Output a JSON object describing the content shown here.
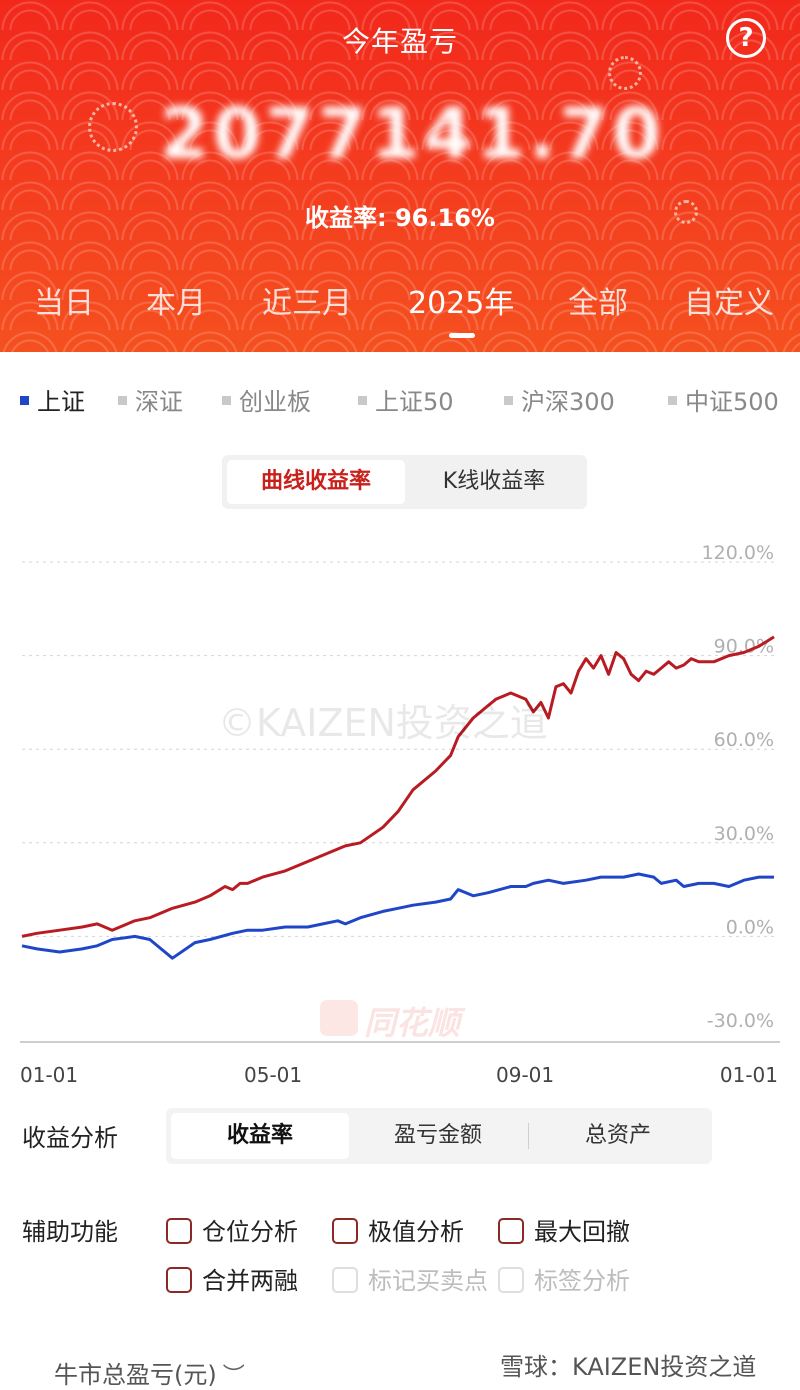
{
  "header": {
    "title": "今年盈亏",
    "amount": "2077141.70",
    "rate_label": "收益率: 96.16%"
  },
  "period_tabs": [
    "当日",
    "本月",
    "近三月",
    "2025年",
    "全部",
    "自定义"
  ],
  "active_period": "2025年",
  "index_options": [
    "上证",
    "深证",
    "创业板",
    "上证50",
    "沪深300",
    "中证500"
  ],
  "active_index": "上证",
  "chart_mode": {
    "active": "曲线收益率",
    "other": "K线收益率"
  },
  "watermark": "©KAIZEN投资之道",
  "brand_logo": "同花顺",
  "colors": {
    "header_red": "#f2281b",
    "portfolio_line": "#b81c22",
    "index_line": "#2046c8"
  },
  "chart_data": {
    "type": "line",
    "x_labels": [
      "01-01",
      "05-01",
      "09-01",
      "01-01"
    ],
    "y_ticks": [
      "120.0%",
      "90.0%",
      "60.0%",
      "30.0%",
      "0.0%",
      "-30.0%"
    ],
    "ylim": [
      -30,
      120
    ],
    "grid": true,
    "series": [
      {
        "color": "#b81c22",
        "x": [
          0,
          2,
          5,
          8,
          10,
          12,
          15,
          17,
          20,
          23,
          25,
          27,
          28,
          29,
          30,
          32,
          35,
          38,
          40,
          42,
          43,
          45,
          48,
          50,
          52,
          55,
          57,
          58,
          60,
          62,
          63,
          65,
          67,
          68,
          69,
          70,
          71,
          72,
          73,
          74,
          75,
          76,
          77,
          78,
          79,
          80,
          81,
          82,
          83,
          84,
          85,
          86,
          87,
          88,
          89,
          90,
          92,
          94,
          96,
          98,
          100
        ],
        "y": [
          0,
          1,
          2,
          3,
          4,
          2,
          5,
          6,
          9,
          11,
          13,
          16,
          15,
          17,
          17,
          19,
          21,
          24,
          26,
          28,
          29,
          30,
          35,
          40,
          47,
          53,
          58,
          64,
          70,
          74,
          76,
          78,
          76,
          72,
          75,
          70,
          80,
          81,
          78,
          85,
          89,
          86,
          90,
          84,
          91,
          89,
          84,
          82,
          85,
          84,
          86,
          88,
          86,
          87,
          89,
          88,
          88,
          90,
          91,
          93,
          96
        ]
      },
      {
        "color": "#2046c8",
        "x": [
          0,
          2,
          5,
          8,
          10,
          12,
          15,
          17,
          20,
          23,
          25,
          28,
          30,
          32,
          35,
          38,
          40,
          42,
          43,
          45,
          48,
          50,
          52,
          55,
          57,
          58,
          60,
          62,
          65,
          67,
          68,
          70,
          72,
          75,
          77,
          80,
          82,
          84,
          85,
          87,
          88,
          90,
          92,
          94,
          96,
          98,
          100
        ],
        "y": [
          -3,
          -4,
          -5,
          -4,
          -3,
          -1,
          0,
          -1,
          -7,
          -2,
          -1,
          1,
          2,
          2,
          3,
          3,
          4,
          5,
          4,
          6,
          8,
          9,
          10,
          11,
          12,
          15,
          13,
          14,
          16,
          16,
          17,
          18,
          17,
          18,
          19,
          19,
          20,
          19,
          17,
          18,
          16,
          17,
          17,
          16,
          18,
          19,
          19
        ]
      }
    ]
  },
  "analysis": {
    "label": "收益分析",
    "segments": [
      "收益率",
      "盈亏金额",
      "总资产"
    ],
    "active_segment": "收益率"
  },
  "aux": {
    "label": "辅助功能",
    "options": [
      {
        "label": "仓位分析"
      },
      {
        "label": "极值分析"
      },
      {
        "label": "最大回撤"
      },
      {
        "label": "合并两融"
      },
      {
        "label": "标记买卖点"
      },
      {
        "label": "标签分析"
      }
    ]
  },
  "bull_total": "牛市总盈亏(元)",
  "source_watermark": "雪球：KAIZEN投资之道",
  "icons": {
    "help": "help-icon",
    "eye": "eye-closed-icon"
  }
}
